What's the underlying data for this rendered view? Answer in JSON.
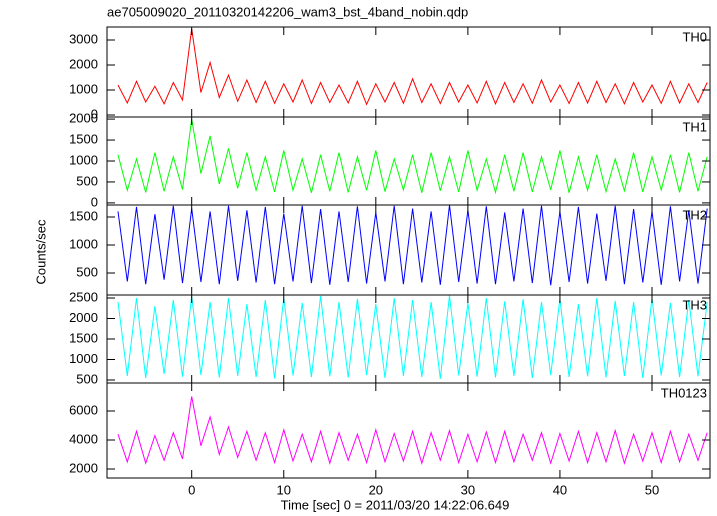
{
  "chart_data": {
    "type": "line",
    "title": "ae705009020_20110320142206_wam3_bst_4band_nobin.qdp",
    "xlabel": "Time [sec] 0 = 2011/03/20 14:22:06.649",
    "ylabel": "Counts/sec",
    "xlim": [
      -9.2,
      56.3
    ],
    "xticks": [
      0,
      10,
      20,
      30,
      40,
      50
    ],
    "x": [
      -8,
      -7,
      -6,
      -5,
      -4,
      -3,
      -2,
      -1,
      0,
      1,
      2,
      3,
      4,
      5,
      6,
      7,
      8,
      9,
      10,
      11,
      12,
      13,
      14,
      15,
      16,
      17,
      18,
      19,
      20,
      21,
      22,
      23,
      24,
      25,
      26,
      27,
      28,
      29,
      30,
      31,
      32,
      33,
      34,
      35,
      36,
      37,
      38,
      39,
      40,
      41,
      42,
      43,
      44,
      45,
      46,
      47,
      48,
      49,
      50,
      51,
      52,
      53,
      54,
      55,
      56
    ],
    "series": [
      {
        "name": "TH0",
        "color": "#ff0000",
        "ylim": [
          -80,
          3520
        ],
        "yticks": [
          0,
          1000,
          2000,
          3000
        ],
        "values": [
          1200,
          480,
          1350,
          520,
          1150,
          450,
          1300,
          600,
          3450,
          900,
          2100,
          700,
          1600,
          550,
          1400,
          500,
          1350,
          470,
          1250,
          520,
          1400,
          460,
          1300,
          500,
          1200,
          480,
          1350,
          430,
          1250,
          520,
          1300,
          470,
          1450,
          500,
          1250,
          460,
          1300,
          520,
          1200,
          480,
          1350,
          450,
          1300,
          500,
          1250,
          470,
          1400,
          520,
          1200,
          460,
          1300,
          480,
          1350,
          500,
          1250,
          450,
          1300,
          520,
          1200,
          470,
          1350,
          480,
          1250,
          500,
          1300
        ]
      },
      {
        "name": "TH1",
        "color": "#00ff00",
        "ylim": [
          -50,
          2050
        ],
        "yticks": [
          0,
          500,
          1000,
          1500,
          2000
        ],
        "values": [
          1150,
          300,
          1050,
          250,
          1200,
          280,
          1100,
          320,
          2000,
          700,
          1600,
          450,
          1300,
          350,
          1200,
          300,
          1100,
          260,
          1250,
          300,
          1050,
          240,
          1150,
          280,
          1200,
          250,
          1100,
          300,
          1250,
          270,
          1050,
          310,
          1150,
          240,
          1200,
          290,
          1100,
          260,
          1250,
          300,
          1050,
          250,
          1150,
          280,
          1200,
          260,
          1100,
          310,
          1250,
          240,
          1100,
          300,
          1150,
          270,
          1050,
          290,
          1200,
          260,
          1100,
          310,
          1150,
          250,
          1200,
          280,
          1100
        ]
      },
      {
        "name": "TH2",
        "color": "#0000ff",
        "ylim": [
          107,
          1714
        ],
        "yticks": [
          500,
          1000,
          1500
        ],
        "values": [
          1600,
          350,
          1680,
          300,
          1550,
          380,
          1700,
          320,
          1650,
          340,
          1600,
          300,
          1700,
          360,
          1620,
          330,
          1680,
          300,
          1560,
          350,
          1700,
          320,
          1640,
          290,
          1600,
          340,
          1690,
          310,
          1580,
          350,
          1700,
          300,
          1650,
          330,
          1600,
          290,
          1710,
          340,
          1620,
          310,
          1690,
          300,
          1580,
          350,
          1650,
          320,
          1700,
          280,
          1600,
          340,
          1680,
          310,
          1560,
          360,
          1700,
          300,
          1640,
          330,
          1600,
          290,
          1690,
          350,
          1620,
          310,
          1650
        ]
      },
      {
        "name": "TH3",
        "color": "#00ffff",
        "ylim": [
          427,
          2573
        ],
        "yticks": [
          500,
          1000,
          1500,
          2000,
          2500
        ],
        "values": [
          2400,
          600,
          2500,
          550,
          2300,
          650,
          2450,
          580,
          2550,
          620,
          2400,
          560,
          2500,
          600,
          2350,
          570,
          2450,
          540,
          2500,
          610,
          2380,
          570,
          2550,
          590,
          2400,
          560,
          2480,
          620,
          2350,
          550,
          2500,
          600,
          2450,
          570,
          2400,
          530,
          2560,
          610,
          2380,
          580,
          2500,
          560,
          2420,
          600,
          2470,
          550,
          2400,
          620,
          2480,
          570,
          2350,
          590,
          2500,
          560,
          2430,
          600,
          2400,
          550,
          2490,
          610,
          2380,
          570,
          2450,
          590,
          2400
        ]
      },
      {
        "name": "TH0123",
        "color": "#ff00ff",
        "ylim": [
          1380,
          7930
        ],
        "yticks": [
          2000,
          4000,
          6000
        ],
        "values": [
          4400,
          2500,
          4600,
          2400,
          4300,
          2600,
          4500,
          2700,
          7000,
          3600,
          5600,
          3000,
          4900,
          2800,
          4600,
          2600,
          4500,
          2450,
          4700,
          2550,
          4400,
          2500,
          4600,
          2400,
          4500,
          2600,
          4400,
          2450,
          4700,
          2500,
          4450,
          2550,
          4600,
          2400,
          4500,
          2600,
          4650,
          2450,
          4400,
          2500,
          4550,
          2450,
          4600,
          2500,
          4400,
          2600,
          4500,
          2400,
          4450,
          2550,
          4600,
          2450,
          4500,
          2500,
          4650,
          2400,
          4400,
          2550,
          4500,
          2450,
          4600,
          2500,
          4400,
          2600,
          4500
        ]
      }
    ]
  }
}
